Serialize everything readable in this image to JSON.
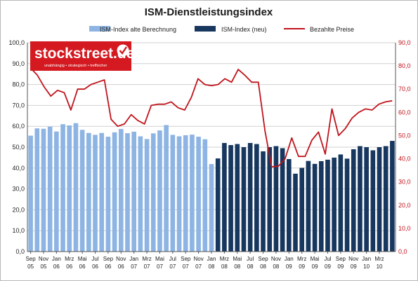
{
  "chart_data": {
    "type": "bar",
    "title": "ISM-Dienstleistungsindex",
    "legend_placement": "top",
    "grid": true,
    "left_axis": {
      "ylim": [
        0,
        100
      ],
      "ticks": [
        "0,0",
        "10,0",
        "20,0",
        "30,0",
        "40,0",
        "50,0",
        "60,0",
        "70,0",
        "80,0",
        "90,0",
        "100,0"
      ]
    },
    "right_axis": {
      "ylim": [
        0,
        90
      ],
      "ticks": [
        "0,0",
        "10,0",
        "20,0",
        "30,0",
        "40,0",
        "50,0",
        "60,0",
        "70,0",
        "80,0",
        "90,0"
      ]
    },
    "x_tick_labels": [
      [
        "Sep",
        "05"
      ],
      [
        "Nov",
        "05"
      ],
      [
        "Jan",
        "06"
      ],
      [
        "Mrz",
        "06"
      ],
      [
        "Mai",
        "06"
      ],
      [
        "Jul",
        "06"
      ],
      [
        "Sep",
        "06"
      ],
      [
        "Nov",
        "06"
      ],
      [
        "Jan",
        "07"
      ],
      [
        "Mrz",
        "07"
      ],
      [
        "Mai",
        "07"
      ],
      [
        "Jul",
        "07"
      ],
      [
        "Sep",
        "07"
      ],
      [
        "Nov",
        "07"
      ],
      [
        "Jan",
        "08"
      ],
      [
        "Mrz",
        "08"
      ],
      [
        "Mai",
        "08"
      ],
      [
        "Jul",
        "08"
      ],
      [
        "Sep",
        "08"
      ],
      [
        "Nov",
        "08"
      ],
      [
        "Jan",
        "09"
      ],
      [
        "Mrz",
        "09"
      ],
      [
        "Mai",
        "09"
      ],
      [
        "Jul",
        "09"
      ],
      [
        "Sep",
        "09"
      ],
      [
        "Nov",
        "09"
      ],
      [
        "Jan",
        "10"
      ],
      [
        "Mrz",
        "10"
      ]
    ],
    "colors": {
      "old": "#8db4e2",
      "new": "#17375e",
      "prices": "#c0141c",
      "grid": "#d0d0d0"
    },
    "series": [
      {
        "name": "ISM-Index alte Berechnung",
        "axis": "left",
        "kind": "bar",
        "values": [
          55.5,
          59.0,
          58.8,
          59.8,
          57.5,
          61.0,
          60.4,
          61.5,
          58.3,
          56.8,
          55.9,
          56.8,
          55.0,
          57.1,
          58.7,
          56.7,
          57.4,
          55.2,
          53.9,
          56.6,
          58.0,
          60.6,
          55.9,
          55.2,
          55.7,
          56.0,
          55.0,
          53.8,
          41.9,
          49.6,
          49.3,
          50.3,
          51.8,
          49.5,
          48.0,
          48.0,
          49.0,
          41.0,
          37.0,
          38.5,
          41.5,
          41.5,
          44.6,
          42.5,
          44.0,
          47.0,
          48.5,
          46.5,
          50.0,
          53.5,
          51.0,
          50.0,
          53.5,
          51.0,
          54.0,
          60.0,
          60.5
        ],
        "show_from": 0,
        "show_to": 28
      },
      {
        "name": "ISM-Index (neu)",
        "axis": "left",
        "kind": "bar",
        "values": [
          null,
          null,
          null,
          null,
          null,
          null,
          null,
          null,
          null,
          null,
          null,
          null,
          null,
          null,
          null,
          null,
          null,
          null,
          null,
          null,
          null,
          null,
          null,
          null,
          null,
          null,
          null,
          null,
          null,
          44.6,
          52.0,
          51.0,
          51.5,
          50.0,
          52.0,
          51.5,
          48.0,
          50.0,
          50.5,
          49.5,
          44.3,
          37.3,
          40.1,
          43.4,
          42.0,
          43.3,
          44.0,
          45.0,
          46.5,
          44.5,
          49.0,
          50.5,
          50.0,
          48.5,
          50.0,
          50.5,
          53.0,
          55.5,
          55.5
        ],
        "show_from": 29,
        "show_to": 56
      },
      {
        "name": "Bezahlte Preise",
        "axis": "right",
        "kind": "line",
        "values": [
          79,
          76,
          71,
          67,
          69.5,
          68.5,
          61,
          70,
          70,
          72,
          73,
          74,
          57,
          54,
          55,
          59,
          56.5,
          55,
          63,
          63.5,
          63.5,
          64.5,
          62,
          61,
          66.5,
          74.5,
          72,
          71.5,
          72,
          74.5,
          73,
          78.5,
          76,
          73,
          73,
          52,
          36.5,
          36.8,
          40,
          49,
          41,
          41,
          48,
          51.5,
          42,
          61.5,
          50,
          53,
          57.5,
          60,
          61.5,
          61,
          63.5,
          64.5,
          65
        ]
      }
    ]
  },
  "logo": {
    "name": "stockstreet.de",
    "tagline": "unabhängig • strategisch • treffsicher"
  }
}
